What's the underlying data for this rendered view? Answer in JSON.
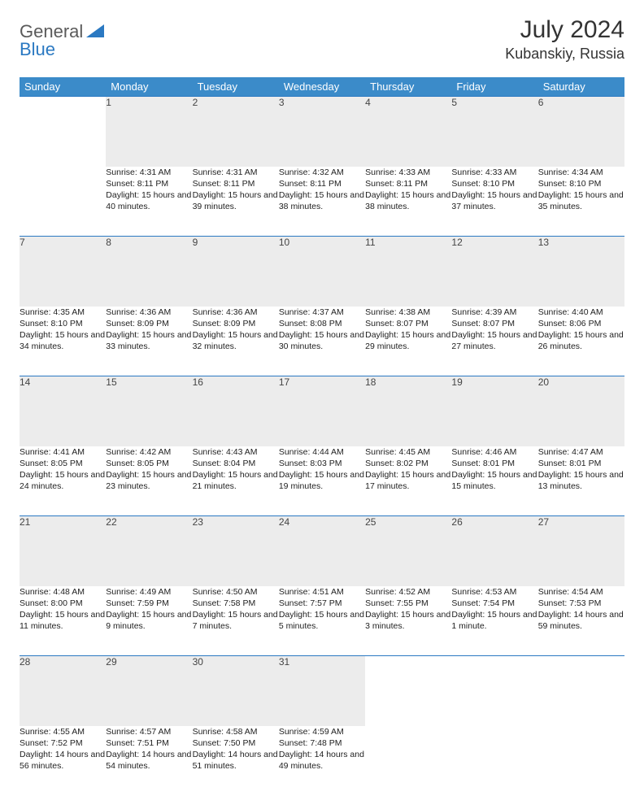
{
  "brand": {
    "part1": "General",
    "part2": "Blue"
  },
  "title": "July 2024",
  "location": "Kubanskiy, Russia",
  "colors": {
    "header_bg": "#3b8bc9",
    "accent": "#2b79c2",
    "daynum_bg": "#ececec",
    "text": "#222222"
  },
  "weekdays": [
    "Sunday",
    "Monday",
    "Tuesday",
    "Wednesday",
    "Thursday",
    "Friday",
    "Saturday"
  ],
  "weeks": [
    [
      null,
      {
        "n": "1",
        "sr": "4:31 AM",
        "ss": "8:11 PM",
        "dl": "15 hours and 40 minutes."
      },
      {
        "n": "2",
        "sr": "4:31 AM",
        "ss": "8:11 PM",
        "dl": "15 hours and 39 minutes."
      },
      {
        "n": "3",
        "sr": "4:32 AM",
        "ss": "8:11 PM",
        "dl": "15 hours and 38 minutes."
      },
      {
        "n": "4",
        "sr": "4:33 AM",
        "ss": "8:11 PM",
        "dl": "15 hours and 38 minutes."
      },
      {
        "n": "5",
        "sr": "4:33 AM",
        "ss": "8:10 PM",
        "dl": "15 hours and 37 minutes."
      },
      {
        "n": "6",
        "sr": "4:34 AM",
        "ss": "8:10 PM",
        "dl": "15 hours and 35 minutes."
      }
    ],
    [
      {
        "n": "7",
        "sr": "4:35 AM",
        "ss": "8:10 PM",
        "dl": "15 hours and 34 minutes."
      },
      {
        "n": "8",
        "sr": "4:36 AM",
        "ss": "8:09 PM",
        "dl": "15 hours and 33 minutes."
      },
      {
        "n": "9",
        "sr": "4:36 AM",
        "ss": "8:09 PM",
        "dl": "15 hours and 32 minutes."
      },
      {
        "n": "10",
        "sr": "4:37 AM",
        "ss": "8:08 PM",
        "dl": "15 hours and 30 minutes."
      },
      {
        "n": "11",
        "sr": "4:38 AM",
        "ss": "8:07 PM",
        "dl": "15 hours and 29 minutes."
      },
      {
        "n": "12",
        "sr": "4:39 AM",
        "ss": "8:07 PM",
        "dl": "15 hours and 27 minutes."
      },
      {
        "n": "13",
        "sr": "4:40 AM",
        "ss": "8:06 PM",
        "dl": "15 hours and 26 minutes."
      }
    ],
    [
      {
        "n": "14",
        "sr": "4:41 AM",
        "ss": "8:05 PM",
        "dl": "15 hours and 24 minutes."
      },
      {
        "n": "15",
        "sr": "4:42 AM",
        "ss": "8:05 PM",
        "dl": "15 hours and 23 minutes."
      },
      {
        "n": "16",
        "sr": "4:43 AM",
        "ss": "8:04 PM",
        "dl": "15 hours and 21 minutes."
      },
      {
        "n": "17",
        "sr": "4:44 AM",
        "ss": "8:03 PM",
        "dl": "15 hours and 19 minutes."
      },
      {
        "n": "18",
        "sr": "4:45 AM",
        "ss": "8:02 PM",
        "dl": "15 hours and 17 minutes."
      },
      {
        "n": "19",
        "sr": "4:46 AM",
        "ss": "8:01 PM",
        "dl": "15 hours and 15 minutes."
      },
      {
        "n": "20",
        "sr": "4:47 AM",
        "ss": "8:01 PM",
        "dl": "15 hours and 13 minutes."
      }
    ],
    [
      {
        "n": "21",
        "sr": "4:48 AM",
        "ss": "8:00 PM",
        "dl": "15 hours and 11 minutes."
      },
      {
        "n": "22",
        "sr": "4:49 AM",
        "ss": "7:59 PM",
        "dl": "15 hours and 9 minutes."
      },
      {
        "n": "23",
        "sr": "4:50 AM",
        "ss": "7:58 PM",
        "dl": "15 hours and 7 minutes."
      },
      {
        "n": "24",
        "sr": "4:51 AM",
        "ss": "7:57 PM",
        "dl": "15 hours and 5 minutes."
      },
      {
        "n": "25",
        "sr": "4:52 AM",
        "ss": "7:55 PM",
        "dl": "15 hours and 3 minutes."
      },
      {
        "n": "26",
        "sr": "4:53 AM",
        "ss": "7:54 PM",
        "dl": "15 hours and 1 minute."
      },
      {
        "n": "27",
        "sr": "4:54 AM",
        "ss": "7:53 PM",
        "dl": "14 hours and 59 minutes."
      }
    ],
    [
      {
        "n": "28",
        "sr": "4:55 AM",
        "ss": "7:52 PM",
        "dl": "14 hours and 56 minutes."
      },
      {
        "n": "29",
        "sr": "4:57 AM",
        "ss": "7:51 PM",
        "dl": "14 hours and 54 minutes."
      },
      {
        "n": "30",
        "sr": "4:58 AM",
        "ss": "7:50 PM",
        "dl": "14 hours and 51 minutes."
      },
      {
        "n": "31",
        "sr": "4:59 AM",
        "ss": "7:48 PM",
        "dl": "14 hours and 49 minutes."
      },
      null,
      null,
      null
    ]
  ],
  "labels": {
    "sunrise": "Sunrise:",
    "sunset": "Sunset:",
    "daylight": "Daylight:"
  }
}
